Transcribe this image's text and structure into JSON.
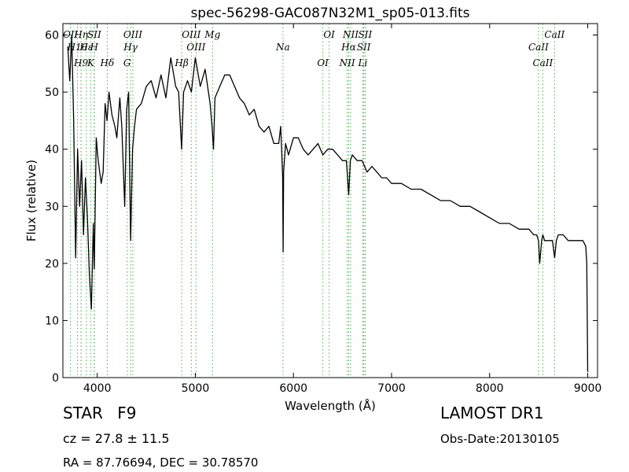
{
  "chart_data": {
    "type": "line",
    "title": "spec-56298-GAC087N32M1_sp05-013.fits",
    "xlabel": "Wavelength (Å)",
    "ylabel": "Flux (relative)",
    "xlim": [
      3650,
      9100
    ],
    "ylim": [
      0,
      62
    ],
    "xticks": [
      4000,
      5000,
      6000,
      7000,
      8000,
      9000
    ],
    "yticks": [
      0,
      10,
      20,
      30,
      40,
      50,
      60
    ],
    "grid": false,
    "series": [
      {
        "color": "#000000",
        "x": [
          3700,
          3720,
          3740,
          3760,
          3780,
          3800,
          3820,
          3840,
          3860,
          3880,
          3900,
          3920,
          3940,
          3960,
          3970,
          3990,
          4010,
          4040,
          4060,
          4080,
          4100,
          4120,
          4150,
          4180,
          4200,
          4230,
          4250,
          4280,
          4300,
          4320,
          4340,
          4360,
          4380,
          4400,
          4450,
          4500,
          4550,
          4600,
          4650,
          4700,
          4750,
          4800,
          4830,
          4860,
          4880,
          4920,
          4960,
          5000,
          5050,
          5100,
          5150,
          5170,
          5185,
          5200,
          5250,
          5300,
          5350,
          5400,
          5450,
          5500,
          5550,
          5600,
          5650,
          5700,
          5750,
          5800,
          5850,
          5870,
          5880,
          5890,
          5895,
          5900,
          5920,
          5950,
          6000,
          6050,
          6100,
          6150,
          6200,
          6250,
          6300,
          6350,
          6400,
          6450,
          6500,
          6540,
          6563,
          6580,
          6600,
          6650,
          6700,
          6750,
          6800,
          6850,
          6900,
          6950,
          7000,
          7100,
          7200,
          7300,
          7400,
          7500,
          7600,
          7700,
          7800,
          7900,
          8000,
          8100,
          8200,
          8300,
          8400,
          8450,
          8480,
          8498,
          8510,
          8530,
          8542,
          8560,
          8600,
          8640,
          8662,
          8680,
          8700,
          8750,
          8800,
          8850,
          8900,
          8950,
          8980,
          8990,
          9000
        ],
        "y": [
          58,
          52,
          60,
          45,
          21,
          40,
          30,
          38,
          25,
          35,
          28,
          18,
          12,
          27,
          19,
          42,
          38,
          34,
          36,
          48,
          45,
          50,
          46,
          44,
          42,
          49,
          44,
          30,
          47,
          50,
          24,
          40,
          44,
          47,
          48,
          51,
          52,
          49,
          53,
          49,
          56,
          51,
          50,
          40,
          50,
          52,
          50,
          56,
          51,
          54,
          48,
          44,
          40,
          49,
          51,
          53,
          53,
          51,
          49,
          48,
          46,
          47,
          44,
          43,
          44,
          41,
          41,
          44,
          40,
          35,
          22,
          36,
          41,
          39,
          42,
          42,
          40,
          39,
          40,
          41,
          39,
          40,
          40,
          39,
          38,
          38,
          32,
          38,
          39,
          38,
          38,
          36,
          37,
          36,
          35,
          35,
          34,
          34,
          33,
          33,
          32,
          31,
          31,
          30,
          30,
          29,
          28,
          27,
          27,
          26,
          26,
          25,
          25,
          24,
          20,
          24,
          25,
          24,
          24,
          24,
          21,
          24,
          25,
          25,
          24,
          24,
          24,
          24,
          23,
          20,
          1
        ]
      }
    ],
    "annotations": [
      {
        "label": "OII",
        "x": 3727
      },
      {
        "label": "H10",
        "x": 3798
      },
      {
        "label": "H9",
        "x": 3835
      },
      {
        "label": "Hη",
        "x": 3835
      },
      {
        "label": "Hε",
        "x": 3889
      },
      {
        "label": "K",
        "x": 3934
      },
      {
        "label": "SII",
        "x": 3970
      },
      {
        "label": "H",
        "x": 3968
      },
      {
        "label": "Hδ",
        "x": 4102
      },
      {
        "label": "OIII",
        "x": 4363
      },
      {
        "label": "Hγ",
        "x": 4340
      },
      {
        "label": "G",
        "x": 4305
      },
      {
        "label": "OIII",
        "x": 4959
      },
      {
        "label": "OIII",
        "x": 5007
      },
      {
        "label": "Hβ",
        "x": 4861
      },
      {
        "label": "Mg",
        "x": 5175
      },
      {
        "label": "Na",
        "x": 5893
      },
      {
        "label": "OI",
        "x": 6300
      },
      {
        "label": "OI",
        "x": 6364
      },
      {
        "label": "Hα",
        "x": 6563
      },
      {
        "label": "NII",
        "x": 6548
      },
      {
        "label": "NII",
        "x": 6583
      },
      {
        "label": "SII",
        "x": 6717
      },
      {
        "label": "Li",
        "x": 6707
      },
      {
        "label": "SII",
        "x": 6731
      },
      {
        "label": "CaII",
        "x": 8498
      },
      {
        "label": "CaII",
        "x": 8542
      },
      {
        "label": "CaII",
        "x": 8662
      }
    ]
  },
  "info": {
    "class": "STAR",
    "subclass": "F9",
    "cz": "cz = 27.8 ± 11.5",
    "radec": "RA = 87.76694, DEC = 30.78570",
    "survey": "LAMOST DR1",
    "obsdate": "Obs-Date:20130105"
  }
}
